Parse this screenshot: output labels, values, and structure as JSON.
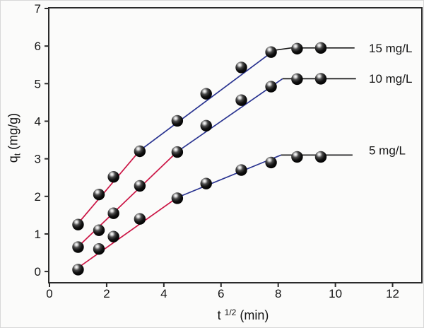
{
  "axes": {
    "xlabel_pre": "t ",
    "xlabel_sup": "1/2",
    "xlabel_post": " (min)",
    "ylabel_pre": "q",
    "ylabel_sub": "t",
    "ylabel_post": " (mg/g)"
  },
  "chart_data": {
    "type": "scatter",
    "title": "",
    "xlabel": "t^1/2 (min)",
    "ylabel": "q_t (mg/g)",
    "xlim": [
      0,
      13
    ],
    "ylim": [
      -0.28,
      7
    ],
    "xticks": [
      0,
      2,
      4,
      6,
      8,
      10,
      12
    ],
    "yticks": [
      0,
      1,
      2,
      3,
      4,
      5,
      6,
      7
    ],
    "grid": false,
    "legend_position": "right-inline",
    "marker": "glossy-black-sphere",
    "x": [
      1.0,
      1.73,
      2.24,
      3.16,
      4.47,
      5.48,
      6.71,
      7.75,
      8.66,
      9.49
    ],
    "series": [
      {
        "label": "15 mg/L",
        "values": [
          1.25,
          2.05,
          2.52,
          3.2,
          4.01,
          4.73,
          5.43,
          5.84,
          5.93,
          5.95
        ],
        "fit_segments": [
          {
            "color_key": "red",
            "pts": [
              [
                1.0,
                1.28
              ],
              [
                3.16,
                3.22
              ]
            ]
          },
          {
            "color_key": "blue",
            "pts": [
              [
                3.16,
                3.22
              ],
              [
                7.78,
                5.84
              ]
            ]
          },
          {
            "color_key": "black",
            "pts": [
              [
                7.78,
                5.88
              ],
              [
                8.45,
                5.95
              ],
              [
                10.67,
                5.95
              ]
            ]
          }
        ]
      },
      {
        "label": "10 mg/L",
        "values": [
          0.65,
          1.1,
          1.55,
          2.28,
          3.18,
          3.88,
          4.56,
          4.92,
          5.12,
          5.13
        ],
        "fit_segments": [
          {
            "color_key": "red",
            "pts": [
              [
                1.0,
                0.66
              ],
              [
                4.47,
                3.19
              ]
            ]
          },
          {
            "color_key": "blue",
            "pts": [
              [
                4.47,
                3.19
              ],
              [
                8.15,
                5.13
              ]
            ]
          },
          {
            "color_key": "black",
            "pts": [
              [
                8.15,
                5.13
              ],
              [
                10.72,
                5.13
              ]
            ]
          }
        ]
      },
      {
        "label": "5 mg/L",
        "values": [
          0.05,
          0.6,
          0.93,
          1.4,
          1.95,
          2.34,
          2.7,
          2.9,
          3.05,
          3.05
        ],
        "fit_segments": [
          {
            "color_key": "red",
            "pts": [
              [
                1.0,
                0.1
              ],
              [
                4.47,
                1.97
              ]
            ]
          },
          {
            "color_key": "blue",
            "pts": [
              [
                4.47,
                1.97
              ],
              [
                8.1,
                3.1
              ]
            ]
          },
          {
            "color_key": "black",
            "pts": [
              [
                8.1,
                3.1
              ],
              [
                10.6,
                3.1
              ]
            ]
          }
        ]
      }
    ],
    "colors": {
      "red": "#cb1444",
      "blue": "#293390",
      "black": "#1a1a1a",
      "frame": "#2b2b2b",
      "text": "#141414"
    }
  }
}
